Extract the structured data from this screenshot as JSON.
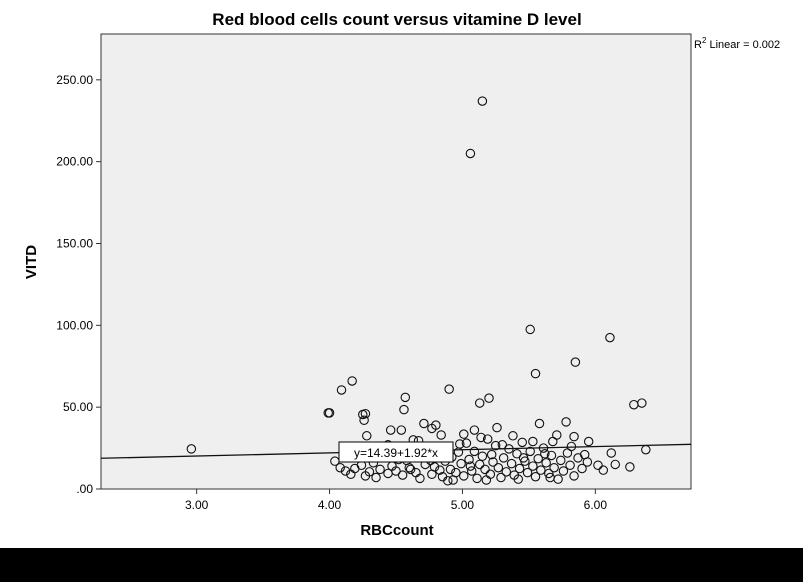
{
  "chart_data": {
    "type": "scatter",
    "title": "Red blood cells count versus vitamine D level",
    "xlabel": "RBCcount",
    "ylabel": "VITD",
    "xlim": [
      2.28,
      6.72
    ],
    "ylim": [
      0,
      278
    ],
    "x_ticks": [
      3.0,
      4.0,
      5.0,
      6.0
    ],
    "x_tick_labels": [
      "3.00",
      "4.00",
      "5.00",
      "6.00"
    ],
    "y_ticks": [
      0,
      50,
      100,
      150,
      200,
      250
    ],
    "y_tick_labels": [
      ".00",
      "50.00",
      "100.00",
      "150.00",
      "200.00",
      "250.00"
    ],
    "grid": false,
    "fit_line": {
      "intercept": 14.39,
      "slope": 1.92,
      "label": "y=14.39+1.92*x"
    },
    "r2_label": {
      "prefix": "R",
      "sup": "2",
      "text": " Linear = 0.002"
    },
    "colors": {
      "plot_bg": "#efefef",
      "marker": "#111111",
      "line": "#111111",
      "footer": "#000000"
    },
    "points": [
      [
        2.96,
        24.5
      ],
      [
        3.99,
        46.5
      ],
      [
        4.0,
        46.5
      ],
      [
        4.09,
        60.5
      ],
      [
        4.17,
        66.0
      ],
      [
        4.25,
        45.5
      ],
      [
        4.26,
        42.0
      ],
      [
        4.27,
        46.0
      ],
      [
        4.28,
        32.5
      ],
      [
        4.46,
        36.0
      ],
      [
        4.54,
        36.0
      ],
      [
        4.56,
        48.5
      ],
      [
        4.57,
        56.0
      ],
      [
        4.71,
        40.0
      ],
      [
        4.77,
        37.0
      ],
      [
        4.8,
        39.0
      ],
      [
        4.9,
        61.0
      ],
      [
        5.01,
        33.5
      ],
      [
        5.06,
        205.0
      ],
      [
        5.09,
        36.0
      ],
      [
        5.13,
        52.5
      ],
      [
        5.15,
        237.0
      ],
      [
        5.2,
        55.5
      ],
      [
        5.51,
        97.5
      ],
      [
        5.55,
        70.5
      ],
      [
        5.58,
        40.0
      ],
      [
        5.68,
        29.0
      ],
      [
        5.78,
        41.0
      ],
      [
        5.84,
        32.0
      ],
      [
        5.85,
        77.5
      ],
      [
        5.95,
        29.0
      ],
      [
        6.11,
        92.5
      ],
      [
        6.12,
        22.0
      ],
      [
        6.15,
        15.0
      ],
      [
        6.26,
        13.5
      ],
      [
        6.29,
        51.5
      ],
      [
        6.35,
        52.5
      ],
      [
        6.38,
        24.0
      ],
      [
        4.04,
        17.0
      ],
      [
        4.08,
        13.0
      ],
      [
        4.12,
        11.0
      ],
      [
        4.16,
        9.0
      ],
      [
        4.19,
        12.5
      ],
      [
        4.22,
        19.0
      ],
      [
        4.24,
        14.5
      ],
      [
        4.27,
        8.0
      ],
      [
        4.3,
        10.5
      ],
      [
        4.33,
        16.0
      ],
      [
        4.35,
        7.0
      ],
      [
        4.38,
        12.0
      ],
      [
        4.41,
        20.0
      ],
      [
        4.44,
        9.5
      ],
      [
        4.47,
        14.0
      ],
      [
        4.5,
        11.0
      ],
      [
        4.53,
        25.0
      ],
      [
        4.55,
        8.5
      ],
      [
        4.58,
        17.5
      ],
      [
        4.6,
        13.0
      ],
      [
        4.63,
        30.0
      ],
      [
        4.65,
        10.0
      ],
      [
        4.68,
        6.5
      ],
      [
        4.7,
        19.5
      ],
      [
        4.72,
        15.0
      ],
      [
        4.74,
        24.0
      ],
      [
        4.77,
        9.0
      ],
      [
        4.79,
        13.5
      ],
      [
        4.81,
        21.0
      ],
      [
        4.83,
        11.5
      ],
      [
        4.85,
        7.5
      ],
      [
        4.87,
        17.0
      ],
      [
        4.89,
        26.0
      ],
      [
        4.91,
        12.0
      ],
      [
        4.93,
        5.5
      ],
      [
        4.95,
        10.0
      ],
      [
        4.97,
        22.5
      ],
      [
        4.99,
        15.5
      ],
      [
        5.01,
        8.0
      ],
      [
        5.03,
        28.0
      ],
      [
        5.05,
        18.0
      ],
      [
        5.07,
        11.0
      ],
      [
        5.09,
        23.0
      ],
      [
        5.11,
        6.5
      ],
      [
        5.13,
        15.0
      ],
      [
        5.15,
        20.0
      ],
      [
        5.17,
        12.0
      ],
      [
        5.19,
        30.5
      ],
      [
        5.21,
        9.0
      ],
      [
        5.23,
        16.5
      ],
      [
        5.25,
        26.5
      ],
      [
        5.27,
        13.0
      ],
      [
        5.29,
        7.0
      ],
      [
        5.31,
        19.0
      ],
      [
        5.33,
        10.5
      ],
      [
        5.35,
        24.5
      ],
      [
        5.37,
        15.5
      ],
      [
        5.39,
        8.5
      ],
      [
        5.41,
        21.5
      ],
      [
        5.43,
        12.5
      ],
      [
        5.45,
        28.5
      ],
      [
        5.47,
        17.0
      ],
      [
        5.49,
        10.0
      ],
      [
        5.51,
        23.0
      ],
      [
        5.53,
        14.0
      ],
      [
        5.55,
        7.5
      ],
      [
        5.57,
        18.5
      ],
      [
        5.59,
        11.5
      ],
      [
        5.61,
        25.0
      ],
      [
        5.63,
        16.0
      ],
      [
        5.65,
        9.5
      ],
      [
        5.67,
        20.5
      ],
      [
        5.69,
        13.0
      ],
      [
        5.72,
        6.0
      ],
      [
        5.74,
        17.5
      ],
      [
        5.76,
        11.0
      ],
      [
        5.79,
        22.0
      ],
      [
        5.81,
        14.5
      ],
      [
        5.84,
        8.0
      ],
      [
        5.87,
        19.0
      ],
      [
        5.9,
        12.5
      ],
      [
        5.94,
        16.5
      ],
      [
        6.02,
        14.5
      ],
      [
        6.06,
        11.5
      ],
      [
        4.36,
        22.0
      ],
      [
        4.44,
        27.0
      ],
      [
        4.52,
        18.0
      ],
      [
        4.61,
        12.0
      ],
      [
        4.67,
        29.5
      ],
      [
        4.76,
        17.5
      ],
      [
        4.84,
        33.0
      ],
      [
        4.92,
        19.5
      ],
      [
        4.98,
        27.5
      ],
      [
        5.06,
        14.0
      ],
      [
        5.14,
        31.5
      ],
      [
        5.22,
        21.0
      ],
      [
        5.26,
        37.5
      ],
      [
        5.3,
        27.0
      ],
      [
        5.38,
        32.5
      ],
      [
        5.46,
        19.0
      ],
      [
        5.53,
        29.0
      ],
      [
        5.62,
        21.5
      ],
      [
        5.71,
        33.0
      ],
      [
        5.82,
        26.0
      ],
      [
        5.92,
        21.0
      ],
      [
        4.89,
        5.0
      ],
      [
        5.18,
        5.5
      ],
      [
        5.42,
        6.0
      ],
      [
        5.66,
        7.0
      ]
    ]
  }
}
